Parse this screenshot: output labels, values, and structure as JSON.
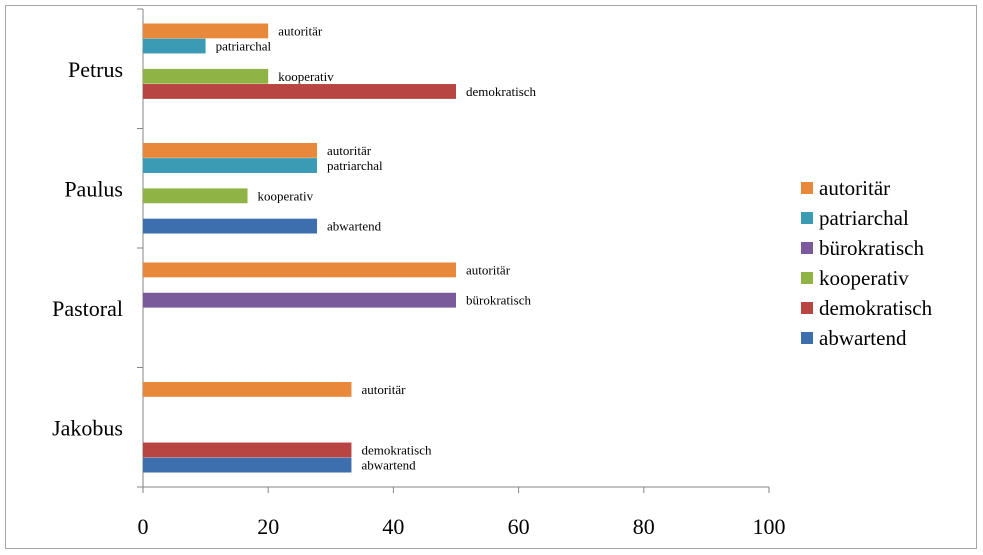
{
  "chart_data": {
    "type": "bar",
    "orientation": "horizontal",
    "xlim": [
      0,
      100
    ],
    "xticks": [
      0,
      20,
      40,
      60,
      80,
      100
    ],
    "grid": false,
    "legend_position": "right",
    "series": [
      {
        "name": "autoritär",
        "color": "#e8883a"
      },
      {
        "name": "patriarchal",
        "color": "#3c9bb4"
      },
      {
        "name": "bürokratisch",
        "color": "#7b5a9c"
      },
      {
        "name": "kooperativ",
        "color": "#8fb344"
      },
      {
        "name": "demokratisch",
        "color": "#b94542"
      },
      {
        "name": "abwartend",
        "color": "#3d6fae"
      }
    ],
    "categories": [
      {
        "name": "Petrus",
        "bars": [
          {
            "series": "autoritär",
            "value": 20
          },
          {
            "series": "patriarchal",
            "value": 10
          },
          {
            "series": "kooperativ",
            "value": 20
          },
          {
            "series": "demokratisch",
            "value": 50
          }
        ]
      },
      {
        "name": "Paulus",
        "bars": [
          {
            "series": "autoritär",
            "value": 27.8
          },
          {
            "series": "patriarchal",
            "value": 27.8
          },
          {
            "series": "kooperativ",
            "value": 16.7
          },
          {
            "series": "abwartend",
            "value": 27.8
          }
        ]
      },
      {
        "name": "Pastoral",
        "bars": [
          {
            "series": "autoritär",
            "value": 50
          },
          {
            "series": "bürokratisch",
            "value": 50
          }
        ]
      },
      {
        "name": "Jakobus",
        "bars": [
          {
            "series": "autoritär",
            "value": 33.3
          },
          {
            "series": "demokratisch",
            "value": 33.3
          },
          {
            "series": "abwartend",
            "value": 33.3
          }
        ]
      }
    ]
  }
}
